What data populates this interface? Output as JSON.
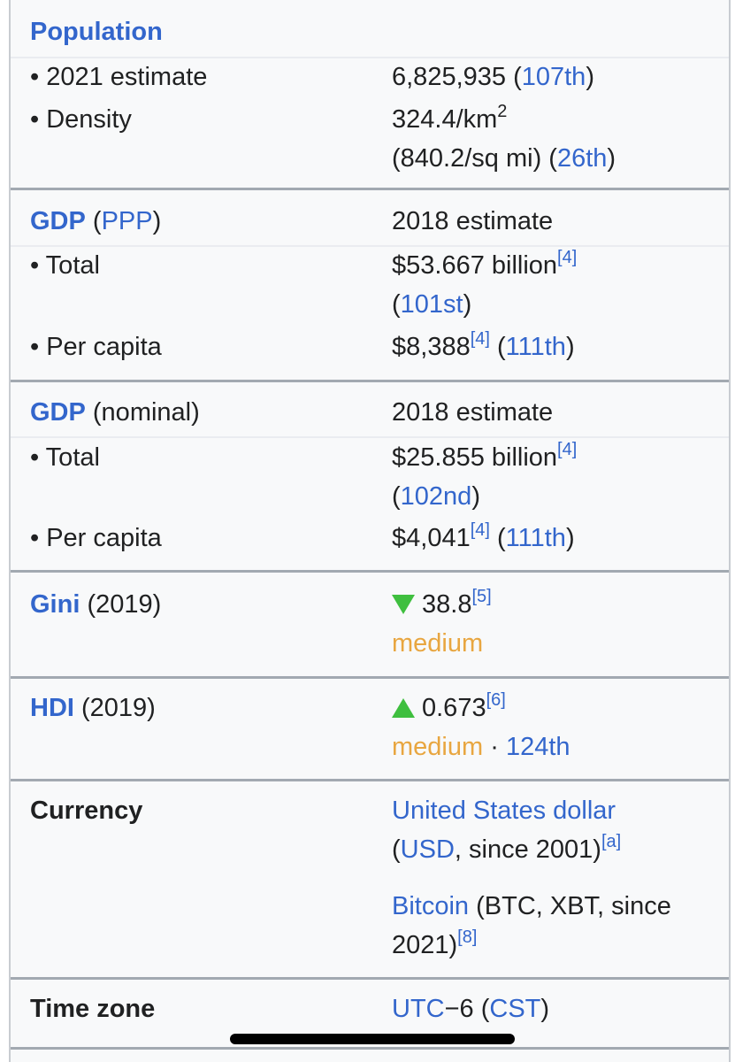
{
  "population": {
    "title": "Population",
    "estimate": {
      "label": "• 2021 estimate",
      "value": [
        "6,825,935 (",
        "107th",
        ")"
      ]
    },
    "density": {
      "label": "• Density",
      "value": [
        "324.4/km",
        "2",
        "(840.2/sq mi) (",
        "26th",
        ")"
      ]
    }
  },
  "gdp_ppp": {
    "title": "GDP",
    "qualifier": [
      " (",
      "PPP",
      ")"
    ],
    "value": "2018 estimate",
    "total": {
      "label": "• Total",
      "value": [
        "$53.667 billion",
        "[4]",
        "(",
        "101st",
        ")"
      ]
    },
    "per_capita": {
      "label": "• Per capita",
      "value": [
        "$8,388",
        "[4]",
        " (",
        "111th",
        ")"
      ]
    }
  },
  "gdp_nominal": {
    "title": "GDP",
    "qualifier": " (nominal)",
    "value": "2018 estimate",
    "total": {
      "label": "• Total",
      "value": [
        "$25.855 billion",
        "[4]",
        "(",
        "102nd",
        ")"
      ]
    },
    "per_capita": {
      "label": "• Per capita",
      "value": [
        "$4,041",
        "[4]",
        " (",
        "111th",
        ")"
      ]
    }
  },
  "gini": {
    "title": "Gini",
    "qualifier": " (2019)",
    "value": [
      "38.8",
      "[5]",
      "medium"
    ]
  },
  "hdi": {
    "title": "HDI",
    "qualifier": " (2019)",
    "value": [
      "0.673",
      "[6]",
      "medium",
      " · ",
      "124th"
    ]
  },
  "currency": {
    "label": "Currency",
    "values": [
      [
        "United States dollar",
        "(",
        "USD",
        ", since 2001)",
        "[a]"
      ],
      [
        "Bitcoin",
        " (BTC, XBT, since 2021)",
        "[8]"
      ]
    ]
  },
  "time_zone": {
    "label": "Time zone",
    "value": [
      "UTC",
      "−6 (",
      "CST",
      ")"
    ]
  }
}
